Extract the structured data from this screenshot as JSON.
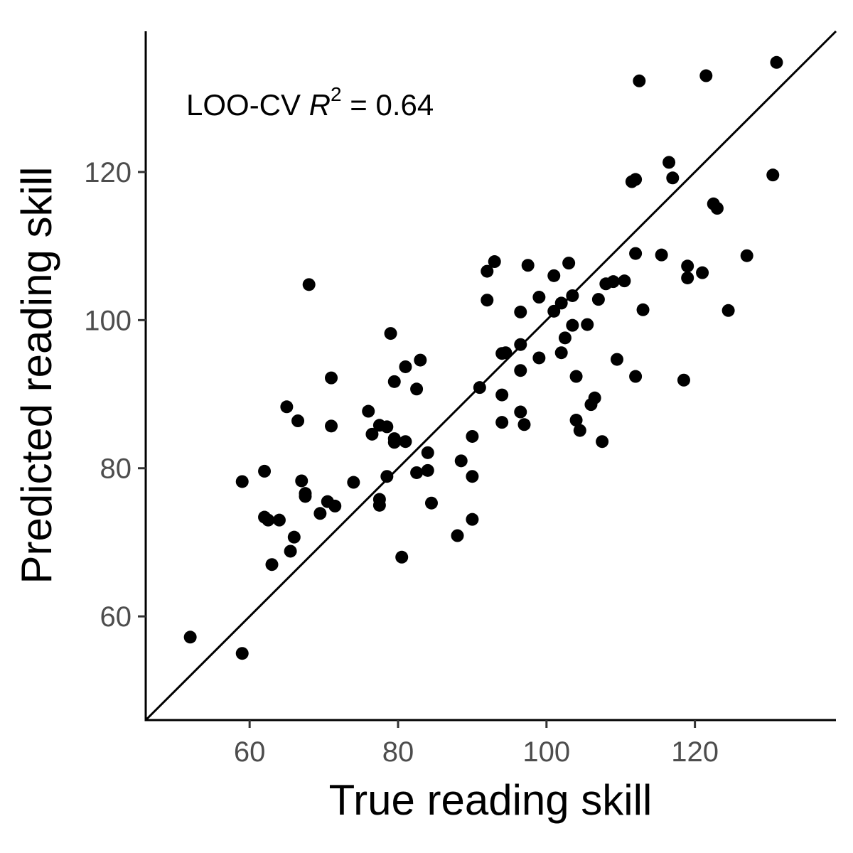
{
  "chart_data": {
    "type": "scatter",
    "title": "",
    "xlabel": "True reading skill",
    "ylabel": "Predicted reading skill",
    "xlim": [
      46,
      139
    ],
    "ylim": [
      46,
      139
    ],
    "xticks": [
      60,
      80,
      100,
      120
    ],
    "yticks": [
      60,
      80,
      100,
      120
    ],
    "grid": false,
    "legend": "none",
    "point_color": "#000000",
    "reference_line": {
      "type": "identity",
      "slope": 1,
      "intercept": 0
    },
    "annotation": {
      "prefix": "LOO-CV ",
      "symbol": "R",
      "superscript": "2",
      "equals": " = ",
      "value": "0.64"
    },
    "points": [
      [
        52,
        57.2
      ],
      [
        59,
        78.2
      ],
      [
        59,
        55
      ],
      [
        62,
        79.6
      ],
      [
        62,
        73.4
      ],
      [
        62.5,
        73
      ],
      [
        63,
        67
      ],
      [
        64,
        73
      ],
      [
        65,
        88.3
      ],
      [
        65.5,
        68.8
      ],
      [
        66,
        70.7
      ],
      [
        66.5,
        86.4
      ],
      [
        67,
        78.3
      ],
      [
        67.5,
        76.2
      ],
      [
        67.5,
        76.6
      ],
      [
        68,
        104.8
      ],
      [
        69.5,
        73.9
      ],
      [
        70.5,
        75.5
      ],
      [
        71,
        92.2
      ],
      [
        71,
        85.7
      ],
      [
        71.5,
        74.9
      ],
      [
        74,
        78.1
      ],
      [
        76,
        87.7
      ],
      [
        76.5,
        84.6
      ],
      [
        77.5,
        85.8
      ],
      [
        77.5,
        75.8
      ],
      [
        77.5,
        75
      ],
      [
        78.5,
        85.6
      ],
      [
        78.5,
        78.9
      ],
      [
        79,
        98.2
      ],
      [
        79.5,
        91.7
      ],
      [
        79.5,
        84
      ],
      [
        79.5,
        83.5
      ],
      [
        81,
        93.7
      ],
      [
        81,
        83.6
      ],
      [
        82.5,
        90.7
      ],
      [
        82.5,
        79.4
      ],
      [
        83,
        94.6
      ],
      [
        84,
        82.1
      ],
      [
        84,
        79.7
      ],
      [
        84.5,
        75.3
      ],
      [
        80.5,
        68
      ],
      [
        88,
        70.9
      ],
      [
        88.5,
        81
      ],
      [
        90,
        84.3
      ],
      [
        90,
        78.9
      ],
      [
        90,
        73.1
      ],
      [
        91,
        90.9
      ],
      [
        92,
        106.6
      ],
      [
        92,
        102.7
      ],
      [
        93,
        107.9
      ],
      [
        94,
        95.5
      ],
      [
        94,
        89.9
      ],
      [
        94,
        86.2
      ],
      [
        94.5,
        95.6
      ],
      [
        96.5,
        101.1
      ],
      [
        96.5,
        96.7
      ],
      [
        96.5,
        93.2
      ],
      [
        96.5,
        87.6
      ],
      [
        97,
        85.9
      ],
      [
        97.5,
        107.4
      ],
      [
        99,
        103.1
      ],
      [
        99,
        94.9
      ],
      [
        101,
        106
      ],
      [
        101,
        101.2
      ],
      [
        102,
        102.3
      ],
      [
        102,
        95.6
      ],
      [
        102.5,
        97.6
      ],
      [
        103,
        107.7
      ],
      [
        103.5,
        103.3
      ],
      [
        103.5,
        99.3
      ],
      [
        104,
        92.4
      ],
      [
        104,
        86.5
      ],
      [
        104.5,
        85.1
      ],
      [
        105.5,
        99.4
      ],
      [
        106,
        88.6
      ],
      [
        106.5,
        89.5
      ],
      [
        107,
        102.8
      ],
      [
        107.5,
        83.6
      ],
      [
        108,
        104.9
      ],
      [
        109,
        105.2
      ],
      [
        109.5,
        94.7
      ],
      [
        110.5,
        105.3
      ],
      [
        111.5,
        118.7
      ],
      [
        112,
        119
      ],
      [
        112,
        109
      ],
      [
        112,
        92.4
      ],
      [
        112.5,
        132.3
      ],
      [
        113,
        101.4
      ],
      [
        115.5,
        108.8
      ],
      [
        116.5,
        121.3
      ],
      [
        117,
        119.2
      ],
      [
        118.5,
        91.9
      ],
      [
        119,
        107.3
      ],
      [
        119,
        105.7
      ],
      [
        121,
        106.4
      ],
      [
        121.5,
        133
      ],
      [
        122.5,
        115.7
      ],
      [
        123,
        115.1
      ],
      [
        124.5,
        101.3
      ],
      [
        127,
        108.7
      ],
      [
        130.5,
        119.6
      ],
      [
        131,
        134.8
      ]
    ]
  }
}
